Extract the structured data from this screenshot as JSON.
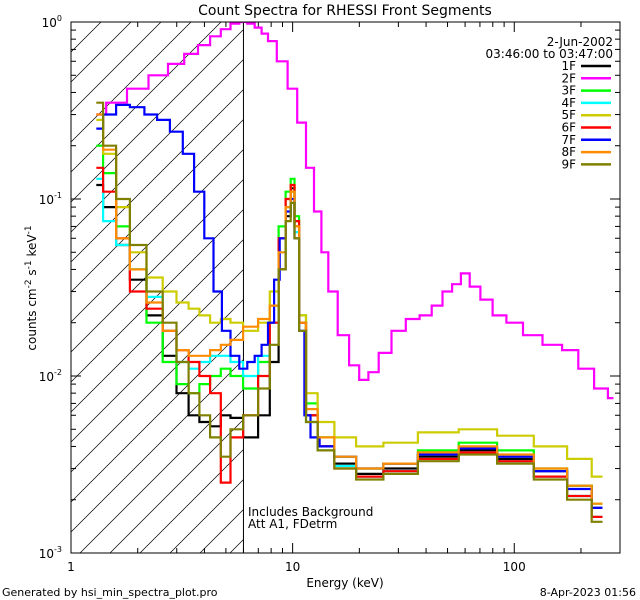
{
  "chart_data": {
    "type": "line",
    "title": "Count Spectra for RHESSI Front Segments",
    "xlabel": "Energy (keV)",
    "ylabel_parts": [
      "counts cm",
      "-2",
      " s",
      "-1",
      " keV",
      "-1"
    ],
    "xscale": "log",
    "yscale": "log",
    "xlim": [
      1,
      300
    ],
    "ylim": [
      0.001,
      1
    ],
    "x_ticks": [
      {
        "value": 1,
        "label": "1"
      },
      {
        "value": 10,
        "label": "10"
      },
      {
        "value": 100,
        "label": "100"
      }
    ],
    "y_ticks": [
      {
        "value": 0.001,
        "label": "10",
        "exp": "-3"
      },
      {
        "value": 0.01,
        "label": "10",
        "exp": "-2"
      },
      {
        "value": 0.1,
        "label": "10",
        "exp": "-1"
      },
      {
        "value": 1,
        "label": "10",
        "exp": "0"
      }
    ],
    "attenuator_line_energy": 6,
    "hatched_region": [
      1,
      6
    ],
    "date": "2-Jun-2002",
    "time_range": "03:46:00 to 03:47:00",
    "annotations": [
      "Includes Background",
      "Att A1, FDetrm"
    ],
    "footer_left": "Generated by hsi_min_spectra_plot.pro",
    "footer_right": "8-Apr-2023 01:56",
    "series": [
      {
        "name": "1F",
        "color": "#000000",
        "x": [
          1.3,
          1.5,
          1.7,
          2.0,
          2.4,
          2.8,
          3.2,
          3.6,
          4.0,
          4.5,
          5.0,
          5.5,
          6.5,
          7.5,
          8.3,
          9.0,
          9.6,
          10.0,
          10.4,
          11.0,
          12.0,
          14.0,
          17.0,
          22.0,
          30.0,
          45.0,
          70.0,
          100.0,
          150.0,
          200.0,
          250.0
        ],
        "y": [
          0.12,
          0.09,
          0.055,
          0.035,
          0.022,
          0.013,
          0.008,
          0.006,
          0.0055,
          0.0052,
          0.006,
          0.0058,
          0.0045,
          0.006,
          0.012,
          0.04,
          0.08,
          0.115,
          0.07,
          0.02,
          0.006,
          0.004,
          0.0032,
          0.0028,
          0.003,
          0.0035,
          0.0038,
          0.0034,
          0.0029,
          0.0024,
          0.0018
        ]
      },
      {
        "name": "2F",
        "color": "#ff00ff",
        "x": [
          1.3,
          1.6,
          2.0,
          2.5,
          3.0,
          3.5,
          4.0,
          4.5,
          5.0,
          5.5,
          6.0,
          6.5,
          7.0,
          7.5,
          8.0,
          9.0,
          10.0,
          11.0,
          12.0,
          13.0,
          14.0,
          15.0,
          17.0,
          19.0,
          21.0,
          23.0,
          26.0,
          30.0,
          35.0,
          40.0,
          45.0,
          50.0,
          55.0,
          60.0,
          66.0,
          75.0,
          85.0,
          100.0,
          120.0,
          150.0,
          180.0,
          210.0,
          250.0,
          280.0
        ],
        "y": [
          0.3,
          0.35,
          0.42,
          0.5,
          0.58,
          0.66,
          0.74,
          0.83,
          0.91,
          0.98,
          1.0,
          0.98,
          0.93,
          0.86,
          0.78,
          0.6,
          0.42,
          0.27,
          0.15,
          0.085,
          0.05,
          0.03,
          0.017,
          0.0115,
          0.0095,
          0.0105,
          0.0135,
          0.018,
          0.021,
          0.022,
          0.025,
          0.03,
          0.033,
          0.038,
          0.032,
          0.027,
          0.022,
          0.02,
          0.017,
          0.015,
          0.014,
          0.011,
          0.0085,
          0.0075
        ]
      },
      {
        "name": "3F",
        "color": "#00ff00",
        "x": [
          1.3,
          1.5,
          1.7,
          2.0,
          2.4,
          2.8,
          3.2,
          3.6,
          4.0,
          4.5,
          5.0,
          5.5,
          6.5,
          7.5,
          8.3,
          9.0,
          9.6,
          10.0,
          10.4,
          11.0,
          12.0,
          14.0,
          17.0,
          22.0,
          30.0,
          45.0,
          70.0,
          100.0,
          150.0,
          200.0,
          250.0
        ],
        "y": [
          0.2,
          0.14,
          0.07,
          0.04,
          0.02,
          0.012,
          0.009,
          0.008,
          0.009,
          0.01,
          0.011,
          0.01,
          0.0085,
          0.012,
          0.025,
          0.07,
          0.11,
          0.13,
          0.08,
          0.022,
          0.007,
          0.0045,
          0.0035,
          0.003,
          0.0032,
          0.0038,
          0.0042,
          0.0038,
          0.003,
          0.0024,
          0.0019
        ]
      },
      {
        "name": "4F",
        "color": "#00ffff",
        "x": [
          1.3,
          1.5,
          1.7,
          2.0,
          2.4,
          2.8,
          3.2,
          3.6,
          4.0,
          4.5,
          5.0,
          5.5,
          6.5,
          7.5,
          8.3,
          9.0,
          9.6,
          10.0,
          10.4,
          11.0,
          12.0,
          14.0,
          17.0,
          22.0,
          30.0,
          45.0,
          70.0,
          100.0,
          150.0,
          200.0,
          250.0
        ],
        "y": [
          0.13,
          0.075,
          0.055,
          0.04,
          0.028,
          0.018,
          0.012,
          0.011,
          0.012,
          0.013,
          0.013,
          0.012,
          0.01,
          0.013,
          0.02,
          0.05,
          0.09,
          0.11,
          0.065,
          0.018,
          0.0055,
          0.0038,
          0.0031,
          0.0027,
          0.0029,
          0.0034,
          0.0037,
          0.0033,
          0.0027,
          0.0021,
          0.0016
        ]
      },
      {
        "name": "5F",
        "color": "#cccc00",
        "x": [
          1.3,
          1.5,
          1.7,
          2.0,
          2.4,
          2.8,
          3.2,
          3.6,
          4.0,
          4.5,
          5.0,
          5.5,
          6.5,
          7.5,
          8.3,
          9.0,
          9.6,
          10.0,
          10.4,
          11.0,
          12.0,
          14.0,
          17.0,
          22.0,
          30.0,
          45.0,
          70.0,
          100.0,
          150.0,
          200.0,
          250.0
        ],
        "y": [
          0.28,
          0.18,
          0.09,
          0.05,
          0.036,
          0.03,
          0.026,
          0.024,
          0.022,
          0.02,
          0.021,
          0.02,
          0.018,
          0.02,
          0.03,
          0.06,
          0.1,
          0.12,
          0.07,
          0.022,
          0.008,
          0.0055,
          0.0045,
          0.004,
          0.0042,
          0.0048,
          0.005,
          0.0046,
          0.004,
          0.0034,
          0.0027
        ]
      },
      {
        "name": "6F",
        "color": "#ff0000",
        "x": [
          1.3,
          1.5,
          1.7,
          2.0,
          2.4,
          2.8,
          3.2,
          3.6,
          4.0,
          4.5,
          5.0,
          5.5,
          6.5,
          7.5,
          8.3,
          9.0,
          9.6,
          10.0,
          10.4,
          11.0,
          12.0,
          14.0,
          17.0,
          22.0,
          30.0,
          45.0,
          70.0,
          100.0,
          150.0,
          200.0,
          250.0
        ],
        "y": [
          0.15,
          0.11,
          0.06,
          0.03,
          0.024,
          0.018,
          0.014,
          0.012,
          0.01,
          0.008,
          0.0025,
          0.0045,
          0.006,
          0.01,
          0.02,
          0.06,
          0.1,
          0.12,
          0.075,
          0.02,
          0.006,
          0.004,
          0.003,
          0.0027,
          0.0029,
          0.0034,
          0.0037,
          0.0033,
          0.0027,
          0.0021,
          0.0016
        ]
      },
      {
        "name": "7F",
        "color": "#0000ff",
        "x": [
          1.3,
          1.5,
          1.7,
          2.0,
          2.3,
          2.6,
          3.0,
          3.4,
          3.8,
          4.2,
          4.6,
          5.0,
          5.5,
          6.0,
          6.5,
          7.0,
          7.5,
          8.0,
          8.5,
          9.0,
          9.6,
          10.0,
          10.4,
          11.0,
          11.6,
          12.5,
          14.0,
          17.0,
          22.0,
          30.0,
          45.0,
          70.0,
          100.0,
          150.0,
          200.0,
          250.0
        ],
        "y": [
          0.25,
          0.3,
          0.34,
          0.33,
          0.3,
          0.28,
          0.24,
          0.18,
          0.11,
          0.06,
          0.03,
          0.018,
          0.013,
          0.011,
          0.012,
          0.013,
          0.015,
          0.02,
          0.035,
          0.06,
          0.085,
          0.1,
          0.06,
          0.018,
          0.006,
          0.0045,
          0.004,
          0.0035,
          0.003,
          0.0032,
          0.0036,
          0.0039,
          0.0035,
          0.0029,
          0.0023,
          0.0018
        ]
      },
      {
        "name": "8F",
        "color": "#ff8c00",
        "x": [
          1.3,
          1.5,
          1.7,
          2.0,
          2.4,
          2.8,
          3.2,
          3.6,
          4.0,
          4.5,
          5.0,
          5.5,
          6.5,
          7.5,
          8.3,
          9.0,
          9.6,
          10.0,
          10.4,
          11.0,
          12.0,
          14.0,
          17.0,
          22.0,
          30.0,
          45.0,
          70.0,
          100.0,
          150.0,
          200.0,
          250.0
        ],
        "y": [
          0.3,
          0.19,
          0.06,
          0.04,
          0.026,
          0.018,
          0.014,
          0.013,
          0.013,
          0.014,
          0.015,
          0.016,
          0.019,
          0.021,
          0.025,
          0.05,
          0.09,
          0.11,
          0.07,
          0.02,
          0.0065,
          0.0045,
          0.0035,
          0.003,
          0.0032,
          0.0037,
          0.004,
          0.0036,
          0.003,
          0.0024,
          0.0019
        ]
      },
      {
        "name": "9F",
        "color": "#808000",
        "x": [
          1.3,
          1.5,
          1.7,
          2.0,
          2.4,
          2.8,
          3.2,
          3.6,
          4.0,
          4.5,
          5.0,
          5.5,
          6.5,
          7.5,
          8.3,
          9.0,
          9.6,
          10.0,
          10.4,
          11.0,
          12.0,
          14.0,
          17.0,
          22.0,
          30.0,
          45.0,
          70.0,
          100.0,
          150.0,
          200.0,
          250.0
        ],
        "y": [
          0.35,
          0.2,
          0.1,
          0.055,
          0.03,
          0.02,
          0.012,
          0.008,
          0.006,
          0.0045,
          0.0035,
          0.005,
          0.006,
          0.0085,
          0.015,
          0.04,
          0.075,
          0.095,
          0.06,
          0.018,
          0.0055,
          0.0038,
          0.003,
          0.0026,
          0.0028,
          0.0033,
          0.0036,
          0.0032,
          0.0026,
          0.002,
          0.0015
        ]
      }
    ]
  }
}
